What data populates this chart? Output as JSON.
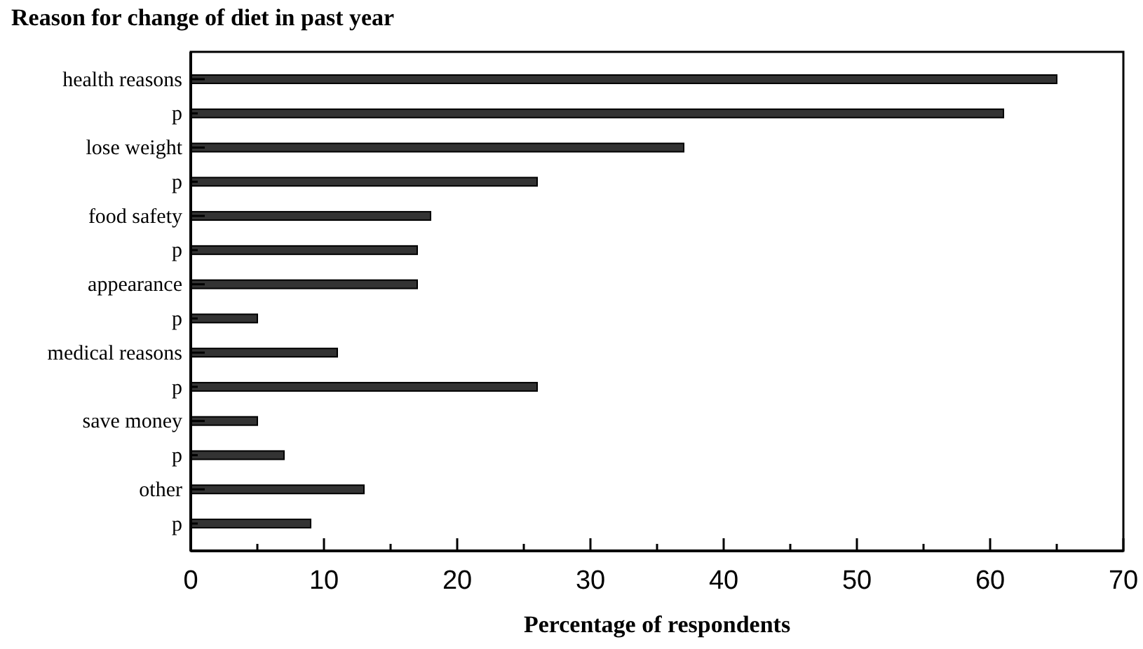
{
  "chart_data": {
    "type": "bar",
    "orientation": "horizontal",
    "title": "Reason for change of diet in past year",
    "xlabel": "Percentage of respondents",
    "categories": [
      "health reasons",
      "p",
      "lose weight",
      "p",
      "food safety",
      "p",
      "appearance",
      "p",
      "medical reasons",
      "p",
      "save money",
      "p",
      "other",
      "p"
    ],
    "values": [
      65,
      61,
      37,
      26,
      18,
      17,
      17,
      5,
      11,
      26,
      5,
      7,
      13,
      9
    ],
    "color": "#333333",
    "xlim": [
      0,
      70
    ],
    "xticks": [
      0,
      {
        "value": 5,
        "label": null
      },
      10,
      {
        "value": 15,
        "label": null
      },
      20,
      {
        "value": 25,
        "label": null
      },
      30,
      {
        "value": 35,
        "label": null
      },
      40,
      {
        "value": 45,
        "label": null
      },
      50,
      {
        "value": 55,
        "label": null
      },
      60,
      {
        "value": 65,
        "label": null
      },
      70
    ],
    "grid": false
  }
}
